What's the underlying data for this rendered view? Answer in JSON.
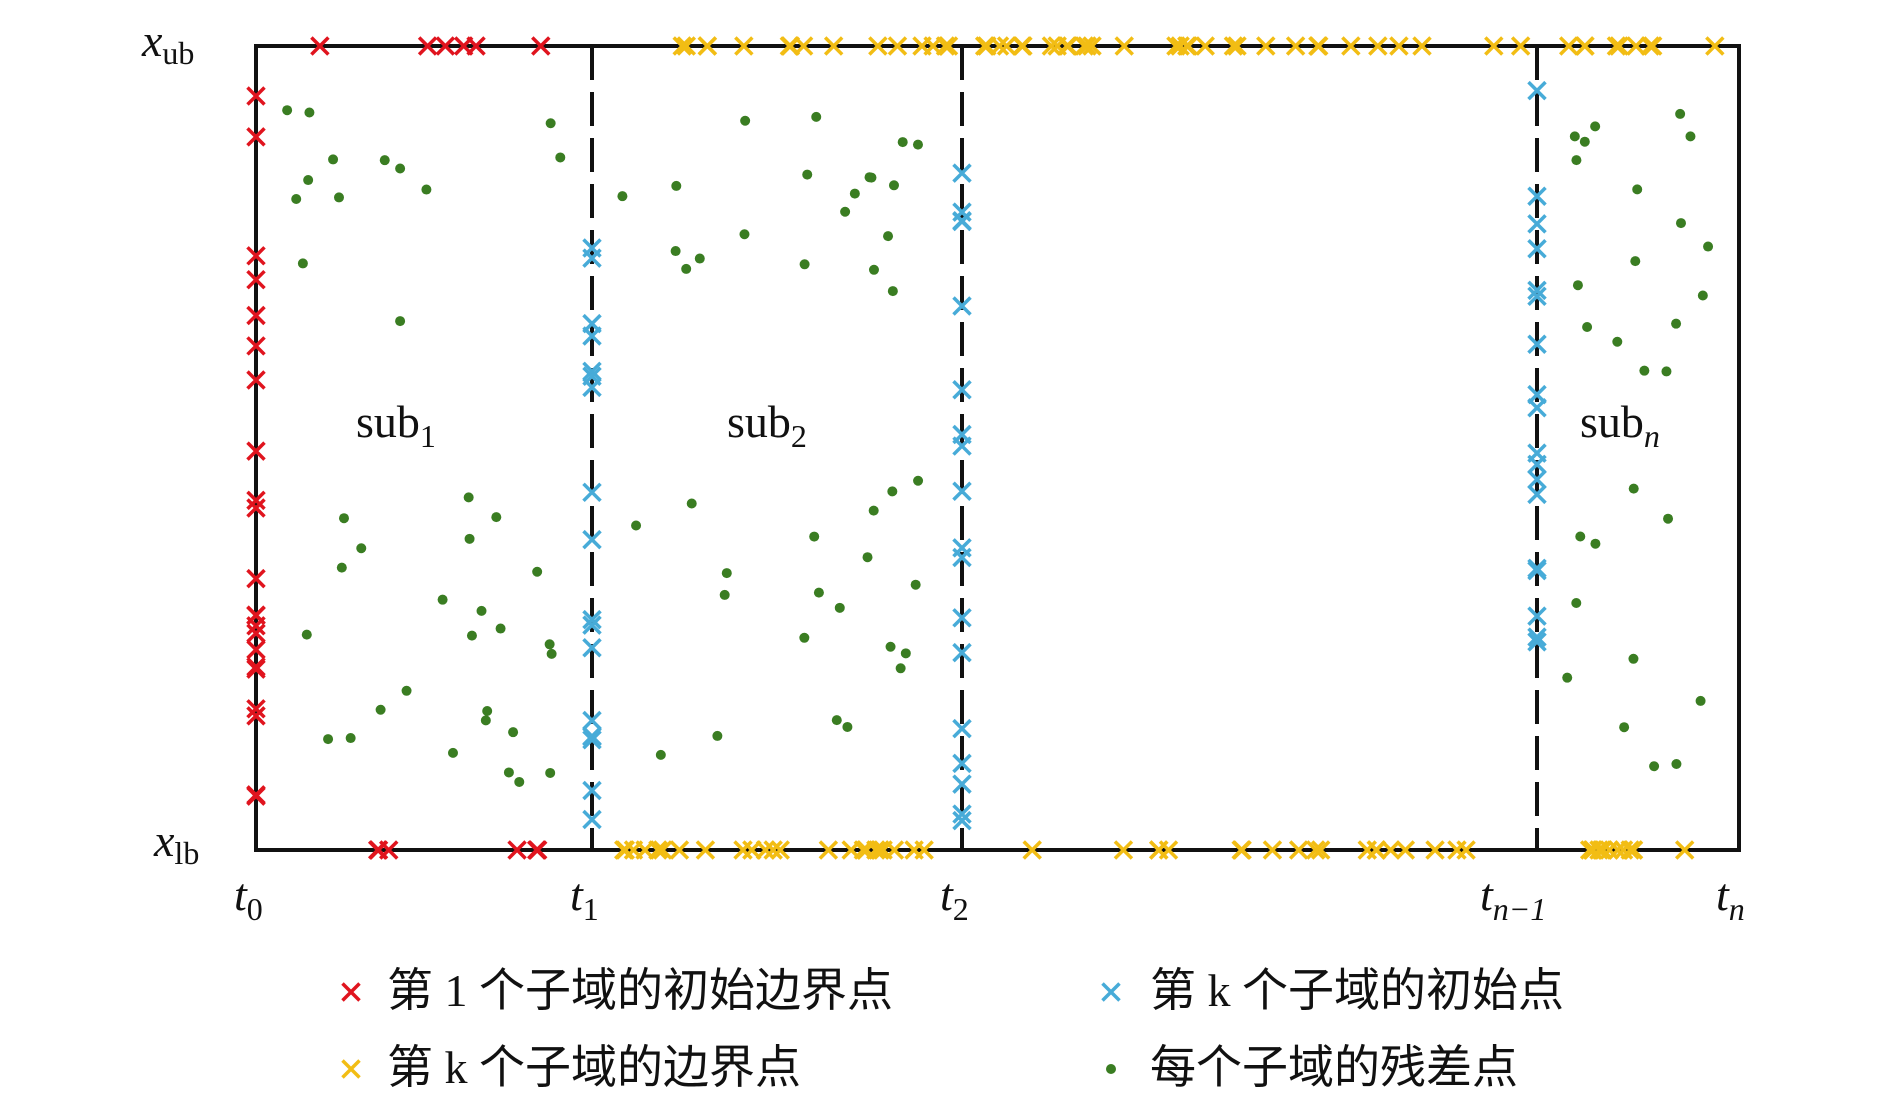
{
  "axis_labels": {
    "x_ub": {
      "main": "x",
      "sub": "ub"
    },
    "x_lb": {
      "main": "x",
      "sub": "lb"
    }
  },
  "time_labels": [
    {
      "main": "t",
      "sub": "0"
    },
    {
      "main": "t",
      "sub": "1"
    },
    {
      "main": "t",
      "sub": "2"
    },
    {
      "main": "t",
      "sub": "n−1"
    },
    {
      "main": "t",
      "sub": "n"
    }
  ],
  "subdomains": [
    {
      "main": "sub",
      "sub": "1"
    },
    {
      "main": "sub",
      "sub": "2"
    },
    {
      "main": "sub",
      "sub": "n"
    }
  ],
  "legend": [
    "第 1 个子域的初始边界点",
    "第 k 个子域的初始点",
    "第 k 个子域的边界点",
    "每个子域的残差点"
  ]
}
